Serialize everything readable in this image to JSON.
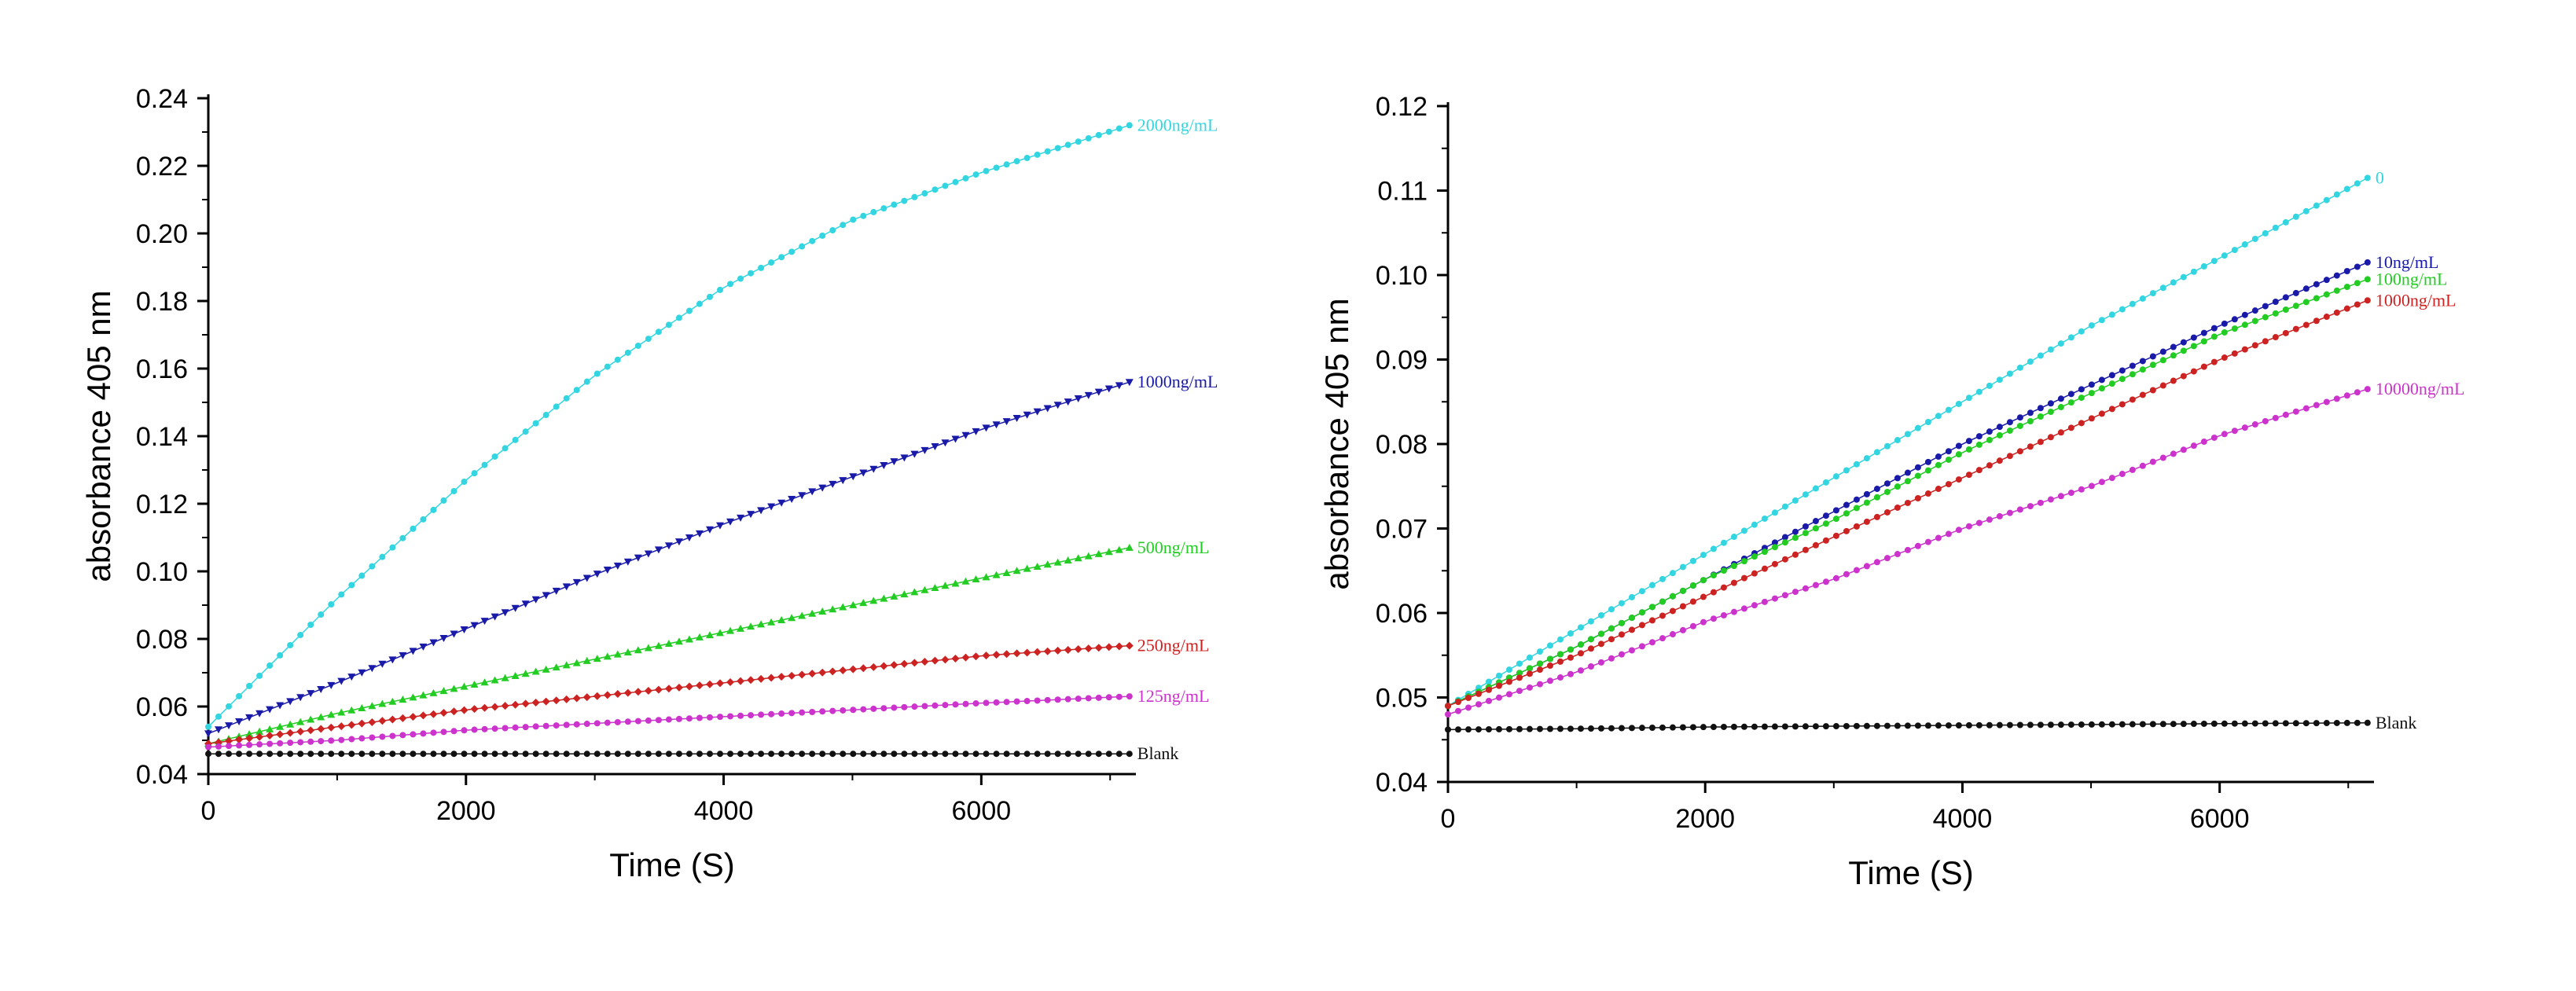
{
  "chart_data": [
    {
      "type": "scatter",
      "xlabel": "Time (S)",
      "ylabel": "absorbance 405 nm",
      "xlim": [
        0,
        7200
      ],
      "ylim": [
        0.04,
        0.24
      ],
      "xticks": [
        "0",
        "2000",
        "4000",
        "6000"
      ],
      "yticks": [
        "0.04",
        "0.06",
        "0.08",
        "0.10",
        "0.12",
        "0.14",
        "0.16",
        "0.18",
        "0.20",
        "0.22",
        "0.24"
      ],
      "grid": false,
      "series": [
        {
          "name": "2000ng/mL",
          "color": "#33d6e0",
          "marker": "circle",
          "x": [
            0,
            1000,
            2000,
            3000,
            4000,
            5000,
            6000,
            7150
          ],
          "y": [
            0.054,
            0.092,
            0.127,
            0.158,
            0.184,
            0.204,
            0.218,
            0.232
          ]
        },
        {
          "name": "1000ng/mL",
          "color": "#1a1aa8",
          "marker": "triangle-down",
          "x": [
            0,
            1000,
            2000,
            3000,
            4000,
            5000,
            6000,
            7150
          ],
          "y": [
            0.052,
            0.067,
            0.083,
            0.099,
            0.114,
            0.128,
            0.142,
            0.156
          ]
        },
        {
          "name": "500ng/mL",
          "color": "#22cc22",
          "marker": "triangle-up",
          "x": [
            0,
            1000,
            2000,
            3000,
            4000,
            5000,
            6000,
            7150
          ],
          "y": [
            0.049,
            0.058,
            0.066,
            0.074,
            0.082,
            0.09,
            0.098,
            0.107
          ]
        },
        {
          "name": "250ng/mL",
          "color": "#cc2222",
          "marker": "diamond",
          "x": [
            0,
            1000,
            2000,
            3000,
            4000,
            5000,
            6000,
            7150
          ],
          "y": [
            0.049,
            0.054,
            0.059,
            0.063,
            0.067,
            0.071,
            0.075,
            0.078
          ]
        },
        {
          "name": "125ng/mL",
          "color": "#cc33cc",
          "marker": "circle",
          "x": [
            0,
            1000,
            2000,
            3000,
            4000,
            5000,
            6000,
            7150
          ],
          "y": [
            0.048,
            0.05,
            0.053,
            0.055,
            0.057,
            0.059,
            0.061,
            0.063
          ]
        },
        {
          "name": "Blank",
          "color": "#111111",
          "marker": "circle",
          "x": [
            0,
            1000,
            2000,
            3000,
            4000,
            5000,
            6000,
            7150
          ],
          "y": [
            0.046,
            0.046,
            0.046,
            0.046,
            0.046,
            0.046,
            0.046,
            0.046
          ]
        }
      ]
    },
    {
      "type": "scatter",
      "xlabel": "Time (S)",
      "ylabel": "absorbance 405 nm",
      "xlim": [
        0,
        7200
      ],
      "ylim": [
        0.04,
        0.12
      ],
      "xticks": [
        "0",
        "2000",
        "4000",
        "6000"
      ],
      "yticks": [
        "0.04",
        "0.05",
        "0.06",
        "0.07",
        "0.08",
        "0.09",
        "0.10",
        "0.11",
        "0.12"
      ],
      "grid": false,
      "series": [
        {
          "name": "0",
          "color": "#33d6e0",
          "marker": "circle",
          "x": [
            0,
            1000,
            2000,
            3000,
            4000,
            5000,
            6000,
            7150
          ],
          "y": [
            0.049,
            0.058,
            0.067,
            0.076,
            0.085,
            0.094,
            0.102,
            0.1115
          ]
        },
        {
          "name": "10ng/mL",
          "color": "#1a1aa8",
          "marker": "circle",
          "x": [
            0,
            1000,
            2000,
            3000,
            4000,
            5000,
            6000,
            7150
          ],
          "y": [
            0.049,
            0.056,
            0.064,
            0.072,
            0.08,
            0.087,
            0.094,
            0.1015
          ]
        },
        {
          "name": "100ng/mL",
          "color": "#22cc22",
          "marker": "circle",
          "x": [
            0,
            1000,
            2000,
            3000,
            4000,
            5000,
            6000,
            7150
          ],
          "y": [
            0.049,
            0.056,
            0.064,
            0.071,
            0.079,
            0.086,
            0.093,
            0.0995
          ]
        },
        {
          "name": "1000ng/mL",
          "color": "#cc2222",
          "marker": "circle",
          "x": [
            0,
            1000,
            2000,
            3000,
            4000,
            5000,
            6000,
            7150
          ],
          "y": [
            0.049,
            0.055,
            0.062,
            0.069,
            0.076,
            0.083,
            0.09,
            0.097
          ]
        },
        {
          "name": "10000ng/mL",
          "color": "#cc33cc",
          "marker": "circle",
          "x": [
            0,
            1000,
            2000,
            3000,
            4000,
            5000,
            6000,
            7150
          ],
          "y": [
            0.048,
            0.053,
            0.059,
            0.064,
            0.07,
            0.075,
            0.081,
            0.0865
          ]
        },
        {
          "name": "Blank",
          "color": "#111111",
          "marker": "circle",
          "x": [
            0,
            1000,
            2000,
            3000,
            4000,
            5000,
            6000,
            7150
          ],
          "y": [
            0.0462,
            0.0463,
            0.0465,
            0.0466,
            0.0467,
            0.0468,
            0.0469,
            0.047
          ]
        }
      ]
    }
  ]
}
